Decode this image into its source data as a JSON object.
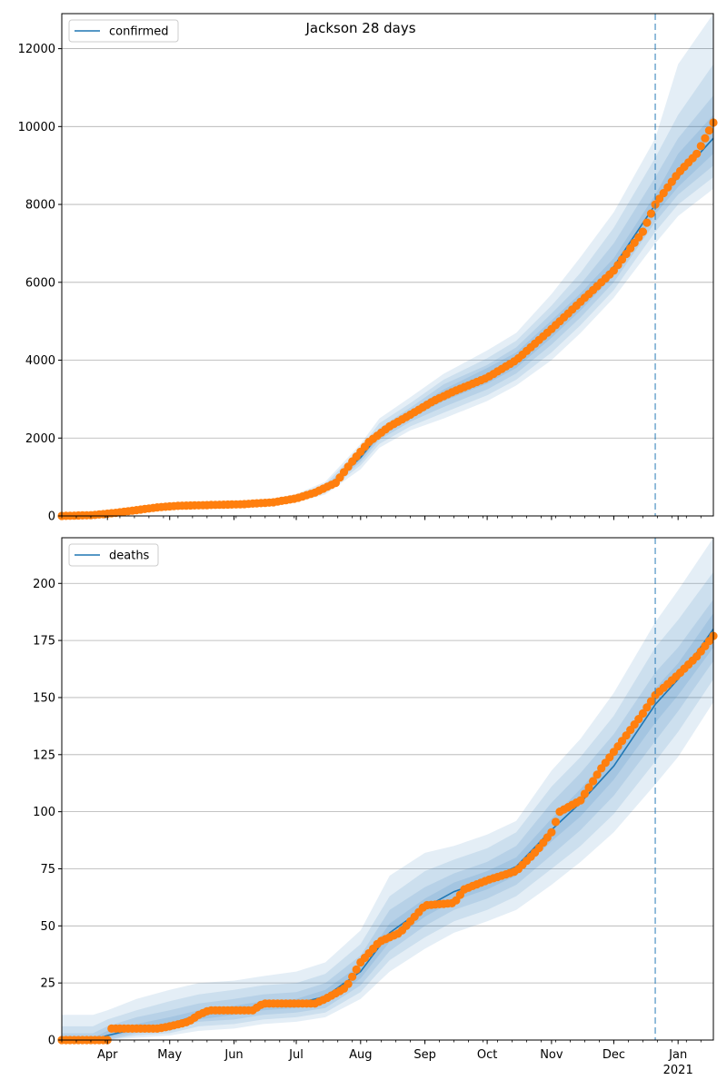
{
  "title": "Jackson 28 days",
  "chart_data": [
    {
      "type": "line",
      "name": "confirmed-panel",
      "legend": [
        "confirmed"
      ],
      "legend_position": "upper-left",
      "x_start": "2020-03-10",
      "x_end": "2021-01-18",
      "forecast_start": "2020-12-21",
      "ylim": [
        0,
        12900
      ],
      "yticks": [
        0,
        2000,
        4000,
        6000,
        8000,
        10000,
        12000
      ],
      "grid": "y",
      "series": [
        {
          "name": "confirmed",
          "color": "#1f77b4",
          "points": [
            [
              "2020-03-10",
              0
            ],
            [
              "2020-03-25",
              20
            ],
            [
              "2020-04-10",
              100
            ],
            [
              "2020-04-25",
              200
            ],
            [
              "2020-05-10",
              250
            ],
            [
              "2020-06-01",
              300
            ],
            [
              "2020-06-20",
              350
            ],
            [
              "2020-07-01",
              450
            ],
            [
              "2020-07-15",
              700
            ],
            [
              "2020-08-01",
              1500
            ],
            [
              "2020-08-10",
              2100
            ],
            [
              "2020-08-25",
              2600
            ],
            [
              "2020-09-10",
              3100
            ],
            [
              "2020-10-01",
              3600
            ],
            [
              "2020-10-15",
              4000
            ],
            [
              "2020-11-01",
              4800
            ],
            [
              "2020-11-15",
              5500
            ],
            [
              "2020-12-01",
              6400
            ],
            [
              "2020-12-21",
              8000
            ],
            [
              "2021-01-01",
              8700
            ],
            [
              "2021-01-18",
              9700
            ]
          ]
        },
        {
          "name": "observed",
          "color": "#ff7f0e",
          "points": [
            [
              "2020-03-10",
              0
            ],
            [
              "2020-03-25",
              20
            ],
            [
              "2020-04-05",
              80
            ],
            [
              "2020-04-15",
              150
            ],
            [
              "2020-04-25",
              220
            ],
            [
              "2020-05-05",
              260
            ],
            [
              "2020-05-20",
              280
            ],
            [
              "2020-06-05",
              300
            ],
            [
              "2020-06-20",
              350
            ],
            [
              "2020-07-01",
              450
            ],
            [
              "2020-07-10",
              600
            ],
            [
              "2020-07-20",
              850
            ],
            [
              "2020-07-28",
              1400
            ],
            [
              "2020-08-05",
              1900
            ],
            [
              "2020-08-15",
              2300
            ],
            [
              "2020-08-25",
              2600
            ],
            [
              "2020-09-05",
              2950
            ],
            [
              "2020-09-15",
              3200
            ],
            [
              "2020-10-01",
              3550
            ],
            [
              "2020-10-15",
              4000
            ],
            [
              "2020-11-01",
              4800
            ],
            [
              "2020-11-15",
              5500
            ],
            [
              "2020-12-01",
              6300
            ],
            [
              "2020-12-15",
              7300
            ],
            [
              "2020-12-21",
              8000
            ],
            [
              "2021-01-01",
              8800
            ],
            [
              "2021-01-10",
              9300
            ],
            [
              "2021-01-18",
              10100
            ]
          ]
        }
      ],
      "bands": [
        {
          "opacity": 0.12,
          "lower": [
            0,
            0,
            60,
            140,
            180,
            220,
            260,
            350,
            550,
            1200,
            1750,
            2200,
            2500,
            2950,
            3350,
            4000,
            4700,
            5600,
            7000,
            7700,
            8400
          ],
          "upper": [
            20,
            40,
            140,
            260,
            330,
            380,
            450,
            560,
            880,
            1850,
            2500,
            3050,
            3650,
            4250,
            4700,
            5700,
            6650,
            7800,
            9700,
            11600,
            12900
          ]
        },
        {
          "opacity": 0.12,
          "lower": [
            0,
            5,
            75,
            160,
            205,
            250,
            290,
            390,
            600,
            1300,
            1850,
            2300,
            2650,
            3100,
            3500,
            4200,
            4900,
            5800,
            7300,
            8000,
            8700
          ],
          "upper": [
            15,
            35,
            125,
            240,
            300,
            350,
            410,
            510,
            820,
            1750,
            2380,
            2900,
            3500,
            4050,
            4500,
            5400,
            6250,
            7400,
            9200,
            10300,
            11600
          ]
        },
        {
          "opacity": 0.12,
          "lower": [
            0,
            10,
            85,
            175,
            220,
            270,
            315,
            415,
            640,
            1380,
            1950,
            2420,
            2800,
            3250,
            3660,
            4400,
            5100,
            6000,
            7550,
            8250,
            9000
          ],
          "upper": [
            10,
            30,
            115,
            225,
            280,
            330,
            385,
            485,
            760,
            1650,
            2250,
            2780,
            3380,
            3880,
            4330,
            5200,
            5950,
            7000,
            8700,
            9700,
            10800
          ]
        },
        {
          "opacity": 0.12,
          "lower": [
            0,
            15,
            92,
            185,
            235,
            285,
            335,
            430,
            670,
            1440,
            2020,
            2500,
            2950,
            3400,
            3800,
            4580,
            5280,
            6180,
            7750,
            8450,
            9300
          ],
          "upper": [
            5,
            25,
            108,
            215,
            265,
            315,
            365,
            470,
            730,
            1560,
            2180,
            2700,
            3250,
            3800,
            4200,
            5020,
            5720,
            6620,
            8250,
            9300,
            10300
          ]
        }
      ]
    },
    {
      "type": "line",
      "name": "deaths-panel",
      "legend": [
        "deaths"
      ],
      "legend_position": "upper-left",
      "x_start": "2020-03-10",
      "x_end": "2021-01-18",
      "forecast_start": "2020-12-21",
      "ylim": [
        0,
        220
      ],
      "yticks": [
        0,
        25,
        50,
        75,
        100,
        125,
        150,
        175,
        200
      ],
      "grid": "y",
      "series": [
        {
          "name": "deaths",
          "color": "#1f77b4",
          "points": [
            [
              "2020-03-10",
              0
            ],
            [
              "2020-03-25",
              0
            ],
            [
              "2020-04-01",
              2
            ],
            [
              "2020-04-15",
              5
            ],
            [
              "2020-05-01",
              7
            ],
            [
              "2020-05-15",
              11
            ],
            [
              "2020-06-01",
              13
            ],
            [
              "2020-06-15",
              15
            ],
            [
              "2020-07-01",
              16
            ],
            [
              "2020-07-15",
              19
            ],
            [
              "2020-08-01",
              30
            ],
            [
              "2020-08-15",
              47
            ],
            [
              "2020-09-01",
              58
            ],
            [
              "2020-09-15",
              65
            ],
            [
              "2020-10-01",
              70
            ],
            [
              "2020-10-15",
              76
            ],
            [
              "2020-11-01",
              92
            ],
            [
              "2020-11-15",
              104
            ],
            [
              "2020-12-01",
              120
            ],
            [
              "2020-12-21",
              147
            ],
            [
              "2021-01-01",
              158
            ],
            [
              "2021-01-18",
              180
            ]
          ]
        },
        {
          "name": "observed",
          "color": "#ff7f0e",
          "points": [
            [
              "2020-03-10",
              0
            ],
            [
              "2020-04-01",
              0
            ],
            [
              "2020-04-03",
              5
            ],
            [
              "2020-04-25",
              5
            ],
            [
              "2020-05-01",
              6
            ],
            [
              "2020-05-10",
              8
            ],
            [
              "2020-05-15",
              11
            ],
            [
              "2020-05-20",
              13
            ],
            [
              "2020-06-10",
              13
            ],
            [
              "2020-06-15",
              16
            ],
            [
              "2020-07-10",
              16
            ],
            [
              "2020-07-15",
              18
            ],
            [
              "2020-07-25",
              23
            ],
            [
              "2020-08-01",
              34
            ],
            [
              "2020-08-10",
              43
            ],
            [
              "2020-08-20",
              47
            ],
            [
              "2020-09-01",
              59
            ],
            [
              "2020-09-15",
              60
            ],
            [
              "2020-09-20",
              66
            ],
            [
              "2020-10-01",
              70
            ],
            [
              "2020-10-15",
              74
            ],
            [
              "2020-10-25",
              83
            ],
            [
              "2020-11-01",
              91
            ],
            [
              "2020-11-05",
              100
            ],
            [
              "2020-11-15",
              105
            ],
            [
              "2020-11-25",
              119
            ],
            [
              "2020-12-05",
              131
            ],
            [
              "2020-12-15",
              143
            ],
            [
              "2020-12-21",
              151
            ],
            [
              "2021-01-01",
              160
            ],
            [
              "2021-01-10",
              168
            ],
            [
              "2021-01-18",
              177
            ]
          ]
        }
      ],
      "bands": [
        {
          "opacity": 0.12,
          "lower": [
            0,
            0,
            0,
            1,
            2,
            4,
            5,
            7,
            8,
            10,
            18,
            30,
            40,
            47,
            52,
            57,
            68,
            78,
            91,
            112,
            124,
            148
          ],
          "upper": [
            11,
            11,
            13,
            18,
            22,
            25,
            26,
            28,
            30,
            34,
            48,
            72,
            82,
            85,
            90,
            96,
            118,
            132,
            152,
            183,
            197,
            220
          ]
        },
        {
          "opacity": 0.12,
          "lower": [
            0,
            0,
            0,
            2,
            3,
            6,
            7,
            9,
            10,
            12,
            21,
            35,
            45,
            52,
            57,
            63,
            75,
            85,
            99,
            122,
            135,
            158
          ],
          "upper": [
            6,
            6,
            9,
            13,
            17,
            20,
            22,
            24,
            25,
            29,
            42,
            63,
            74,
            79,
            84,
            91,
            111,
            124,
            142,
            172,
            184,
            205
          ]
        },
        {
          "opacity": 0.12,
          "lower": [
            0,
            0,
            0,
            3,
            4,
            8,
            9,
            11,
            12,
            14,
            24,
            39,
            50,
            57,
            62,
            68,
            81,
            92,
            107,
            131,
            144,
            166
          ],
          "upper": [
            3,
            3,
            6,
            10,
            13,
            16,
            18,
            20,
            21,
            25,
            37,
            57,
            67,
            73,
            78,
            85,
            104,
            117,
            134,
            161,
            172,
            193
          ]
        },
        {
          "opacity": 0.12,
          "lower": [
            0,
            0,
            1,
            4,
            5,
            9,
            11,
            13,
            14,
            16,
            27,
            43,
            54,
            61,
            66,
            72,
            87,
            98,
            114,
            139,
            151,
            172
          ],
          "upper": [
            1,
            1,
            4,
            7,
            10,
            13,
            15,
            17,
            18,
            22,
            33,
            51,
            62,
            69,
            74,
            80,
            97,
            110,
            126,
            154,
            165,
            187
          ]
        }
      ]
    }
  ],
  "x_axis": {
    "month_labels": [
      "Apr",
      "May",
      "Jun",
      "Jul",
      "Aug",
      "Sep",
      "Oct",
      "Nov",
      "Dec",
      "Jan"
    ],
    "month_dates": [
      "2020-04-01",
      "2020-05-01",
      "2020-06-01",
      "2020-07-01",
      "2020-08-01",
      "2020-09-01",
      "2020-10-01",
      "2020-11-01",
      "2020-12-01",
      "2021-01-01"
    ],
    "year_label": "2021"
  },
  "colors": {
    "line": "#1f77b4",
    "points": "#ff7f0e",
    "band": "#1f77b4",
    "grid": "#b0b0b0",
    "forecast_marker": "#1f77b4"
  }
}
